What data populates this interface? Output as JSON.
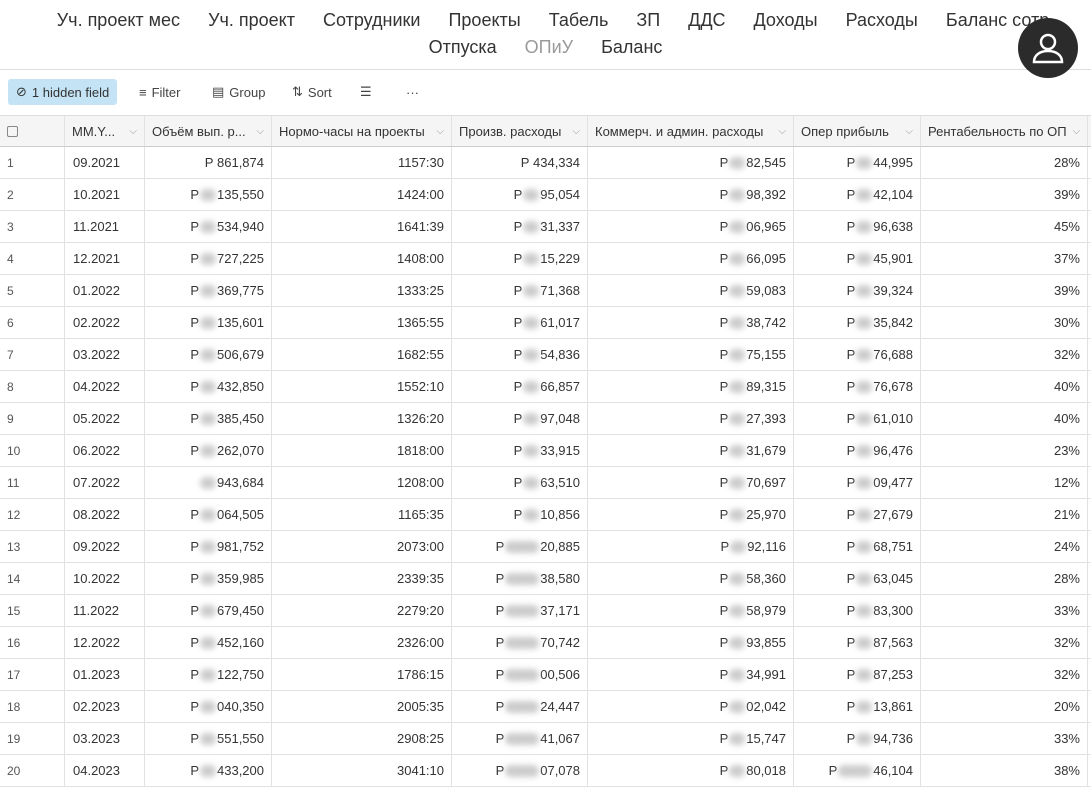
{
  "nav": {
    "line1": [
      "Уч. проект мес",
      "Уч. проект",
      "Сотрудники",
      "Проекты",
      "Табель",
      "ЗП",
      "ДДС",
      "Доходы",
      "Расходы",
      "Баланс сотр."
    ],
    "line2": [
      "Отпуска",
      "ОПиУ",
      "Баланс"
    ],
    "active": "ОПиУ"
  },
  "toolbar": {
    "hidden": "1 hidden field",
    "filter": "Filter",
    "group": "Group",
    "sort": "Sort",
    "more": "···"
  },
  "columns": [
    "MM.Y...",
    "Объём вып. р...",
    "Нормо-часы на проекты",
    "Произв. расходы",
    "Коммерч. и админ. расходы",
    "Опер прибыль",
    "Рентабельность по ОП"
  ],
  "rows": [
    [
      "09.2021",
      "Р 861,874",
      "1157:30",
      "Р 434,334",
      [
        "Р",
        "82,545"
      ],
      [
        "Р",
        "44,995"
      ],
      "28%"
    ],
    [
      "10.2021",
      [
        "Р",
        "135,550"
      ],
      "1424:00",
      [
        "Р",
        "95,054"
      ],
      [
        "Р",
        "98,392"
      ],
      [
        "Р",
        "42,104"
      ],
      "39%"
    ],
    [
      "11.2021",
      [
        "Р",
        "534,940"
      ],
      "1641:39",
      [
        "Р",
        "31,337"
      ],
      [
        "Р",
        "06,965"
      ],
      [
        "Р",
        "96,638"
      ],
      "45%"
    ],
    [
      "12.2021",
      [
        "Р",
        "727,225"
      ],
      "1408:00",
      [
        "Р",
        "15,229"
      ],
      [
        "Р",
        "66,095"
      ],
      [
        "Р",
        "45,901"
      ],
      "37%"
    ],
    [
      "01.2022",
      [
        "Р",
        "369,775"
      ],
      "1333:25",
      [
        "Р",
        "71,368"
      ],
      [
        "Р",
        "59,083"
      ],
      [
        "Р",
        "39,324"
      ],
      "39%"
    ],
    [
      "02.2022",
      [
        "Р",
        "135,601"
      ],
      "1365:55",
      [
        "Р",
        "61,017"
      ],
      [
        "Р",
        "38,742"
      ],
      [
        "Р",
        "35,842"
      ],
      "30%"
    ],
    [
      "03.2022",
      [
        "Р",
        "506,679"
      ],
      "1682:55",
      [
        "Р",
        "54,836"
      ],
      [
        "Р",
        "75,155"
      ],
      [
        "Р",
        "76,688"
      ],
      "32%"
    ],
    [
      "04.2022",
      [
        "Р",
        "432,850"
      ],
      "1552:10",
      [
        "Р",
        "66,857"
      ],
      [
        "Р",
        "89,315"
      ],
      [
        "Р",
        "76,678"
      ],
      "40%"
    ],
    [
      "05.2022",
      [
        "Р",
        "385,450"
      ],
      "1326:20",
      [
        "Р",
        "97,048"
      ],
      [
        "Р",
        "27,393"
      ],
      [
        "Р",
        "61,010"
      ],
      "40%"
    ],
    [
      "06.2022",
      [
        "Р",
        "262,070"
      ],
      "1818:00",
      [
        "Р",
        "33,915"
      ],
      [
        "Р",
        "31,679"
      ],
      [
        "Р",
        "96,476"
      ],
      "23%"
    ],
    [
      "07.2022",
      [
        "",
        "943,684"
      ],
      "1208:00",
      [
        "Р",
        "63,510"
      ],
      [
        "Р",
        "70,697"
      ],
      [
        "Р",
        "09,477"
      ],
      "12%"
    ],
    [
      "08.2022",
      [
        "Р",
        "064,505"
      ],
      "1165:35",
      [
        "Р",
        "10,856"
      ],
      [
        "Р",
        "25,970"
      ],
      [
        "Р",
        "27,679"
      ],
      "21%"
    ],
    [
      "09.2022",
      [
        "Р",
        "981,752"
      ],
      "2073:00",
      [
        "Р",
        "20,885",
        "w"
      ],
      [
        "Р",
        "92,116"
      ],
      [
        "Р",
        "68,751"
      ],
      "24%"
    ],
    [
      "10.2022",
      [
        "Р",
        "359,985"
      ],
      "2339:35",
      [
        "Р",
        "38,580",
        "w"
      ],
      [
        "Р",
        "58,360"
      ],
      [
        "Р",
        "63,045"
      ],
      "28%"
    ],
    [
      "11.2022",
      [
        "Р",
        "679,450"
      ],
      "2279:20",
      [
        "Р",
        "37,171",
        "w"
      ],
      [
        "Р",
        "58,979"
      ],
      [
        "Р",
        "83,300"
      ],
      "33%"
    ],
    [
      "12.2022",
      [
        "Р",
        "452,160"
      ],
      "2326:00",
      [
        "Р",
        "70,742",
        "w"
      ],
      [
        "Р",
        "93,855"
      ],
      [
        "Р",
        "87,563"
      ],
      "32%"
    ],
    [
      "01.2023",
      [
        "Р",
        "122,750"
      ],
      "1786:15",
      [
        "Р",
        "00,506",
        "w"
      ],
      [
        "Р",
        "34,991"
      ],
      [
        "Р",
        "87,253"
      ],
      "32%"
    ],
    [
      "02.2023",
      [
        "Р",
        "040,350"
      ],
      "2005:35",
      [
        "Р",
        "24,447",
        "w"
      ],
      [
        "Р",
        "02,042"
      ],
      [
        "Р",
        "13,861"
      ],
      "20%"
    ],
    [
      "03.2023",
      [
        "Р",
        "551,550"
      ],
      "2908:25",
      [
        "Р",
        "41,067",
        "w"
      ],
      [
        "Р",
        "15,747"
      ],
      [
        "Р",
        "94,736"
      ],
      "33%"
    ],
    [
      "04.2023",
      [
        "Р",
        "433,200"
      ],
      "3041:10",
      [
        "Р",
        "07,078",
        "w"
      ],
      [
        "Р",
        "80,018"
      ],
      [
        "Р",
        "46,104",
        "w"
      ],
      "38%"
    ]
  ]
}
